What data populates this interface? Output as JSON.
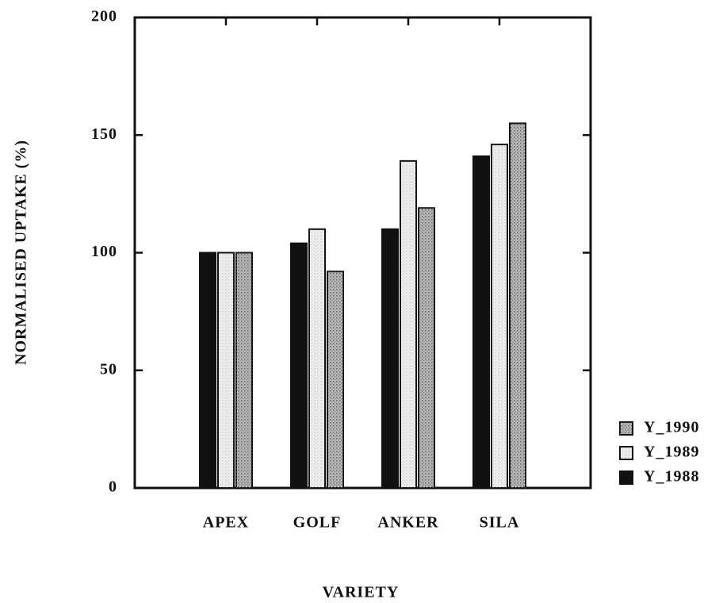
{
  "chart_data": {
    "type": "bar",
    "xlabel": "VARIETY",
    "ylabel": "NORMALISED UPTAKE (%)",
    "categories": [
      "APEX",
      "GOLF",
      "ANKER",
      "SILA"
    ],
    "series": [
      {
        "name": "Y_1988",
        "color": "#111111",
        "values": [
          100,
          104,
          110,
          141
        ]
      },
      {
        "name": "Y_1989",
        "color": "#f0f0f0",
        "values": [
          100,
          110,
          139,
          146
        ]
      },
      {
        "name": "Y_1990",
        "color": "#b5b5b5",
        "values": [
          100,
          92,
          119,
          155
        ]
      }
    ],
    "ylim": [
      0,
      200
    ],
    "yticks": [
      0,
      50,
      100,
      150,
      200
    ],
    "grid": false
  }
}
